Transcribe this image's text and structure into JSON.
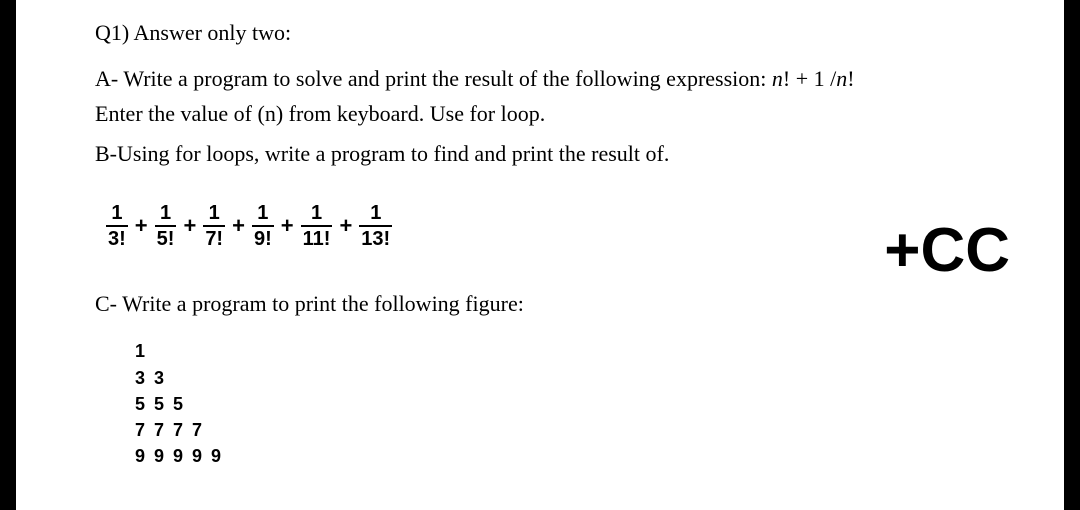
{
  "title": "Q1) Answer only two:",
  "partA_line1_pre": "A-  Write a program to solve and print the result of the following expression:   ",
  "partA_expr_n": "n",
  "partA_expr_rest": "! + 1 /",
  "partA_expr_n2": "n",
  "partA_expr_tail": "!",
  "partA_line2": "Enter the value of (n) from keyboard. Use for loop.",
  "partB": "B-Using for loops, write a program to find and print the result of.",
  "series": {
    "numerator": "1",
    "denominators": [
      "3!",
      "5!",
      "7!",
      "9!",
      "11!",
      "13!"
    ],
    "operator": "+"
  },
  "watermark": "+CC",
  "partC": "C- Write a program to print the following figure:",
  "pyramid_lines": [
    "1",
    "3 3",
    "5 5 5",
    "7 7 7 7",
    "9 9 9 9 9"
  ],
  "colors": {
    "background": "#ffffff",
    "text": "#000000",
    "edge": "#000000"
  },
  "fonts": {
    "body_family": "Times New Roman",
    "body_size_pt": 16,
    "bold_family": "Arial",
    "watermark_size_pt": 46
  }
}
